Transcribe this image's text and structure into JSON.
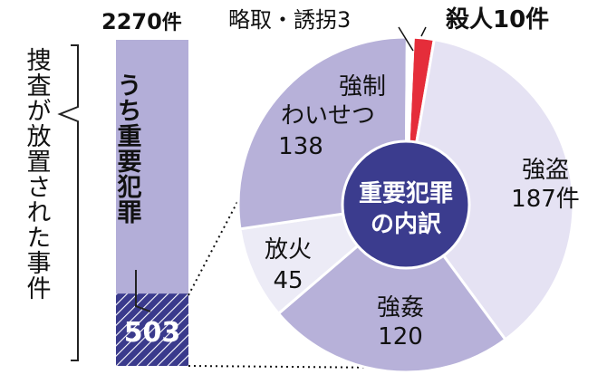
{
  "colors": {
    "bar_fill": "#b3aed8",
    "bar_hatch_bg": "#3a3a8c",
    "bar_hatch_line": "#ffffff",
    "pie_purple": "#b7b1d9",
    "pie_light": "#e5e2f3",
    "pie_lighter": "#ecebf6",
    "pie_red": "#e52d3a",
    "center_fill": "#3b3c8e",
    "text_dark": "#111111",
    "text_light": "#ffffff"
  },
  "bar": {
    "total_number": "2270",
    "total_unit": "件",
    "side_caption": "捜査が放置された事件",
    "inner_label": "うち重要犯罪",
    "highlight_value": "503"
  },
  "pie": {
    "center_line1": "重要犯罪",
    "center_line2": "の内訳",
    "label_strong_robbery_name": "強盗",
    "label_strong_robbery_value": "187件",
    "label_rape_name": "強姦",
    "label_rape_value": "120",
    "label_arson_name": "放火",
    "label_arson_value": "45",
    "label_indecent_line1": "強制",
    "label_indecent_line2": "わいせつ",
    "label_indecent_value": "138",
    "label_kidnap": "略取・誘拐3",
    "label_murder": "殺人10件"
  },
  "chart_data": [
    {
      "type": "bar",
      "categories": [
        "捜査が放置された事件",
        "うち重要犯罪"
      ],
      "values": [
        2270,
        503
      ]
    },
    {
      "type": "pie",
      "title": "重要犯罪の内訳",
      "categories": [
        "殺人",
        "強盗",
        "強姦",
        "放火",
        "強制わいせつ",
        "略取・誘拐"
      ],
      "values": [
        10,
        187,
        120,
        45,
        138,
        3
      ],
      "colors": [
        "#e52d3a",
        "#e5e2f3",
        "#b7b1d9",
        "#ecebf6",
        "#b7b1d9",
        "#ffffff"
      ]
    }
  ]
}
